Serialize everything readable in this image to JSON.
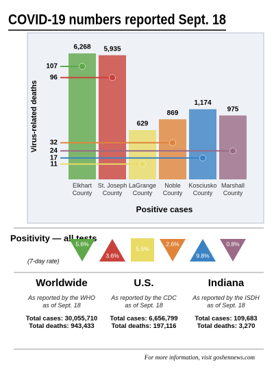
{
  "chart_data": {
    "type": "bar-lollipop",
    "title": "COVID-19 numbers reported Sept. 18",
    "x_label": "Positive cases",
    "y_label": "Virus-related deaths",
    "categories": [
      "Elkhart County",
      "St. Joseph County",
      "LaGrange County",
      "Noble County",
      "Kosciusko County",
      "Marshall County"
    ],
    "colors": [
      "#5fa84a",
      "#c9423a",
      "#e9dc64",
      "#e0843a",
      "#3a82c4",
      "#9a6a86"
    ],
    "cases": {
      "values": [
        6268,
        5935,
        629,
        869,
        1174,
        975
      ],
      "value_labels": [
        "6,268",
        "5,935",
        "629",
        "869",
        "1,174",
        "975"
      ]
    },
    "deaths": {
      "values": [
        107,
        96,
        11,
        32,
        17,
        24
      ]
    }
  },
  "positivity": {
    "title": "Positivity — all tests",
    "subtitle": "(7-day rate)",
    "values": [
      5.6,
      3.6,
      5.5,
      2.6,
      9.8,
      0.8
    ],
    "value_labels": [
      "5.6%",
      "3.6%",
      "5.5%",
      "2.6%",
      "9.8%",
      "0.8%"
    ],
    "shapes": [
      "down",
      "up",
      "square",
      "down",
      "up",
      "down"
    ]
  },
  "regions": [
    {
      "name": "Worldwide",
      "note": "As reported by the WHO as of Sept. 18",
      "cases": "Total cases: 30,055,710",
      "deaths": "Total deaths: 943,433"
    },
    {
      "name": "U.S.",
      "note": "As reported by the CDC as of Sept. 18",
      "cases": "Total cases: 6,656,799",
      "deaths": "Total deaths: 197,116"
    },
    {
      "name": "Indiana",
      "note": "As reported by the ISDH as of Sept. 18",
      "cases": "Total cases: 109,683",
      "deaths": "Total deaths: 3,270"
    }
  ],
  "footer": "For more information, visit goshennews.com"
}
